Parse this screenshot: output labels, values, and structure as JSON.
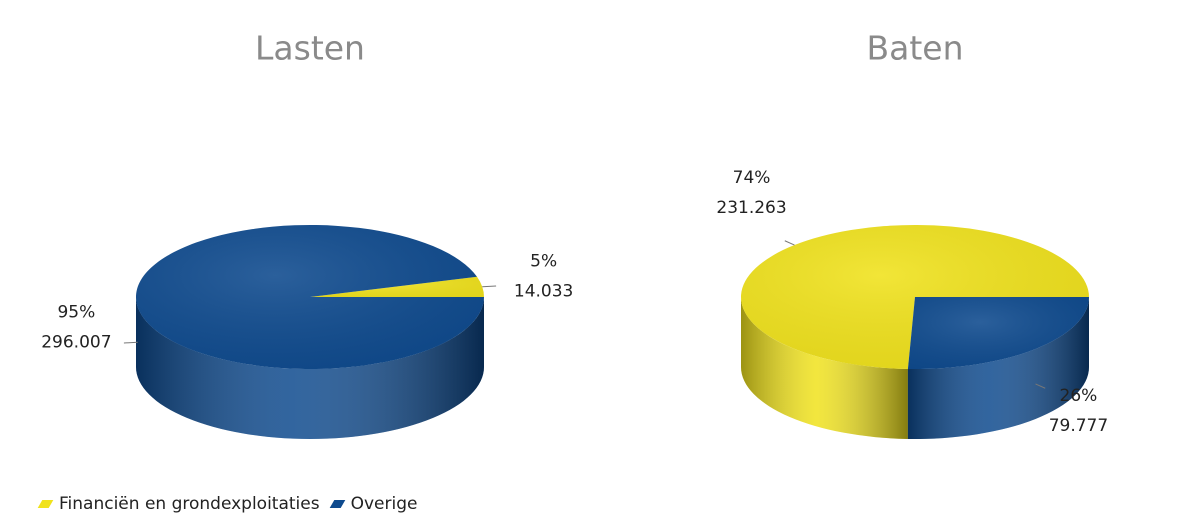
{
  "chart_data": [
    {
      "type": "pie",
      "title": "Lasten",
      "values": [
        14033,
        296007
      ],
      "value_labels": [
        "14.033",
        "296.007"
      ],
      "percents": [
        5,
        95
      ],
      "percent_labels": [
        "5%",
        "95%"
      ]
    },
    {
      "type": "pie",
      "title": "Baten",
      "values": [
        231263,
        79777
      ],
      "value_labels": [
        "231.263",
        "79.777"
      ],
      "percents": [
        74,
        26
      ],
      "percent_labels": [
        "74%",
        "26%"
      ]
    }
  ],
  "legend": {
    "labels": [
      "Financiën en grondexploitaties",
      "Overige"
    ],
    "colors": [
      "#f0e21c",
      "#0e4a8e"
    ]
  }
}
